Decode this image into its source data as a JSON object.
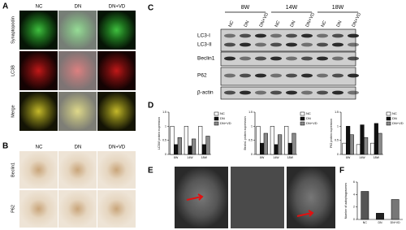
{
  "panels": {
    "A": {
      "label": "A",
      "columns": [
        "NC",
        "DN",
        "DN+VD"
      ],
      "rows": [
        "Synaptopodin",
        "LC3B",
        "Merge"
      ]
    },
    "B": {
      "label": "B",
      "columns": [
        "NC",
        "DN",
        "DN+VD"
      ],
      "rows": [
        "Beclin1",
        "P62"
      ]
    },
    "C": {
      "label": "C",
      "timepoints": [
        "8W",
        "14W",
        "18W"
      ],
      "lanes": [
        "NC",
        "DN",
        "DN+VD",
        "NC",
        "DN",
        "DN+VD",
        "NC",
        "DN",
        "DN+VD"
      ],
      "blots": [
        "LC3-I",
        "LC3-II",
        "Beclin1",
        "P62",
        "β-actin"
      ]
    },
    "D": {
      "label": "D",
      "charts": [
        {
          "type": "bar",
          "y_label": "LC3II/I protein expression",
          "categories": [
            "8W",
            "14W",
            "18W"
          ],
          "series": [
            {
              "name": "NC",
              "color": "#ffffff",
              "values": [
                1.0,
                1.0,
                1.0
              ]
            },
            {
              "name": "DN",
              "color": "#111111",
              "values": [
                0.35,
                0.3,
                0.35
              ]
            },
            {
              "name": "DN+VD",
              "color": "#888888",
              "values": [
                0.6,
                0.55,
                0.65
              ]
            }
          ],
          "ylim": [
            0,
            1.5
          ],
          "yticks": [
            0,
            0.5,
            1,
            1.5
          ]
        },
        {
          "type": "bar",
          "y_label": "Beclin1 protein expression",
          "categories": [
            "8W",
            "14W",
            "18W"
          ],
          "series": [
            {
              "name": "NC",
              "color": "#ffffff",
              "values": [
                1.0,
                1.0,
                1.0
              ]
            },
            {
              "name": "DN",
              "color": "#111111",
              "values": [
                0.4,
                0.35,
                0.4
              ]
            },
            {
              "name": "DN+VD",
              "color": "#888888",
              "values": [
                0.75,
                0.7,
                0.75
              ]
            }
          ],
          "ylim": [
            0,
            1.5
          ],
          "yticks": [
            0,
            0.5,
            1,
            1.5
          ]
        },
        {
          "type": "bar",
          "y_label": "P62 protein expression",
          "categories": [
            "8W",
            "14W",
            "18W"
          ],
          "series": [
            {
              "name": "NC",
              "color": "#ffffff",
              "values": [
                0.4,
                0.35,
                0.4
              ]
            },
            {
              "name": "DN",
              "color": "#111111",
              "values": [
                1.0,
                1.05,
                1.1
              ]
            },
            {
              "name": "DN+VD",
              "color": "#888888",
              "values": [
                0.7,
                0.6,
                0.75
              ]
            }
          ],
          "ylim": [
            0,
            1.5
          ],
          "yticks": [
            0,
            0.5,
            1,
            1.5
          ]
        }
      ]
    },
    "E": {
      "label": "E"
    },
    "F": {
      "label": "F",
      "chart": {
        "type": "bar",
        "y_label": "Number of autophagosomes",
        "categories": [
          "NC",
          "DN",
          "DN+VD"
        ],
        "values": [
          4.5,
          1,
          3.2
        ],
        "colors": [
          "#555555",
          "#222222",
          "#777777"
        ],
        "ylim": [
          0,
          6
        ],
        "yticks": [
          0,
          2,
          4,
          6
        ]
      }
    }
  }
}
